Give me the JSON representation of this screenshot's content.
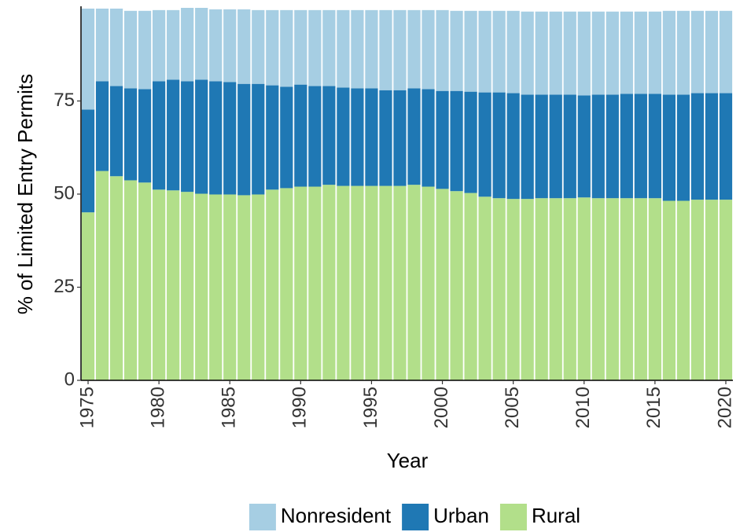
{
  "chart_data": {
    "type": "stacked-bar",
    "x_label": "Year",
    "y_label": "% of Limited Entry Permits",
    "x": [
      1975,
      1976,
      1977,
      1978,
      1979,
      1980,
      1981,
      1982,
      1983,
      1984,
      1985,
      1986,
      1987,
      1988,
      1989,
      1990,
      1991,
      1992,
      1993,
      1994,
      1995,
      1996,
      1997,
      1998,
      1999,
      2000,
      2001,
      2002,
      2003,
      2004,
      2005,
      2006,
      2007,
      2008,
      2009,
      2010,
      2011,
      2012,
      2013,
      2014,
      2015,
      2016,
      2017,
      2018,
      2019,
      2020
    ],
    "xlim": [
      1974.5,
      2020.5
    ],
    "xticks": [
      1975,
      1980,
      1985,
      1990,
      1995,
      2000,
      2005,
      2010,
      2015,
      2020
    ],
    "ylim": [
      0,
      100
    ],
    "yticks": [
      0,
      25,
      50,
      75
    ],
    "series": [
      {
        "name": "Rural",
        "color": "#b2df8a",
        "values": [
          45.1,
          56.2,
          54.8,
          53.7,
          53.1,
          51.2,
          51.0,
          50.6,
          50.1,
          49.9,
          49.9,
          49.7,
          49.9,
          51.2,
          51.6,
          52.0,
          52.0,
          52.5,
          52.2,
          52.2,
          52.2,
          52.2,
          52.2,
          52.5,
          52.0,
          51.4,
          50.8,
          50.3,
          49.3,
          48.9,
          48.7,
          48.7,
          48.9,
          48.9,
          48.9,
          49.1,
          48.9,
          48.9,
          48.9,
          48.9,
          48.9,
          48.2,
          48.2,
          48.5,
          48.5,
          48.5
        ]
      },
      {
        "name": "Urban",
        "color": "#1f78b4",
        "values": [
          27.6,
          24.1,
          24.2,
          24.7,
          25.1,
          29.1,
          29.7,
          29.7,
          30.6,
          30.4,
          30.2,
          29.9,
          29.7,
          28.0,
          27.2,
          27.4,
          27.0,
          26.5,
          26.4,
          26.2,
          26.2,
          25.7,
          25.7,
          25.9,
          26.2,
          26.3,
          26.9,
          27.2,
          28.0,
          28.4,
          28.4,
          28.0,
          27.8,
          27.8,
          27.8,
          27.4,
          27.8,
          27.8,
          28.0,
          28.0,
          28.0,
          28.5,
          28.5,
          28.6,
          28.6,
          28.6
        ]
      },
      {
        "name": "Nonresident",
        "color": "#a6cee3",
        "values": [
          27.1,
          19.5,
          20.8,
          20.8,
          21.0,
          19.1,
          18.7,
          19.7,
          19.3,
          19.3,
          19.5,
          20.0,
          19.8,
          20.2,
          20.6,
          20.0,
          20.4,
          20.4,
          20.8,
          21.0,
          21.0,
          21.5,
          21.5,
          21.0,
          21.2,
          21.7,
          21.5,
          21.7,
          21.9,
          21.9,
          22.1,
          22.3,
          22.3,
          22.3,
          22.3,
          22.5,
          22.3,
          22.3,
          22.1,
          22.1,
          22.1,
          22.5,
          22.5,
          22.1,
          22.1,
          22.1
        ]
      }
    ]
  }
}
